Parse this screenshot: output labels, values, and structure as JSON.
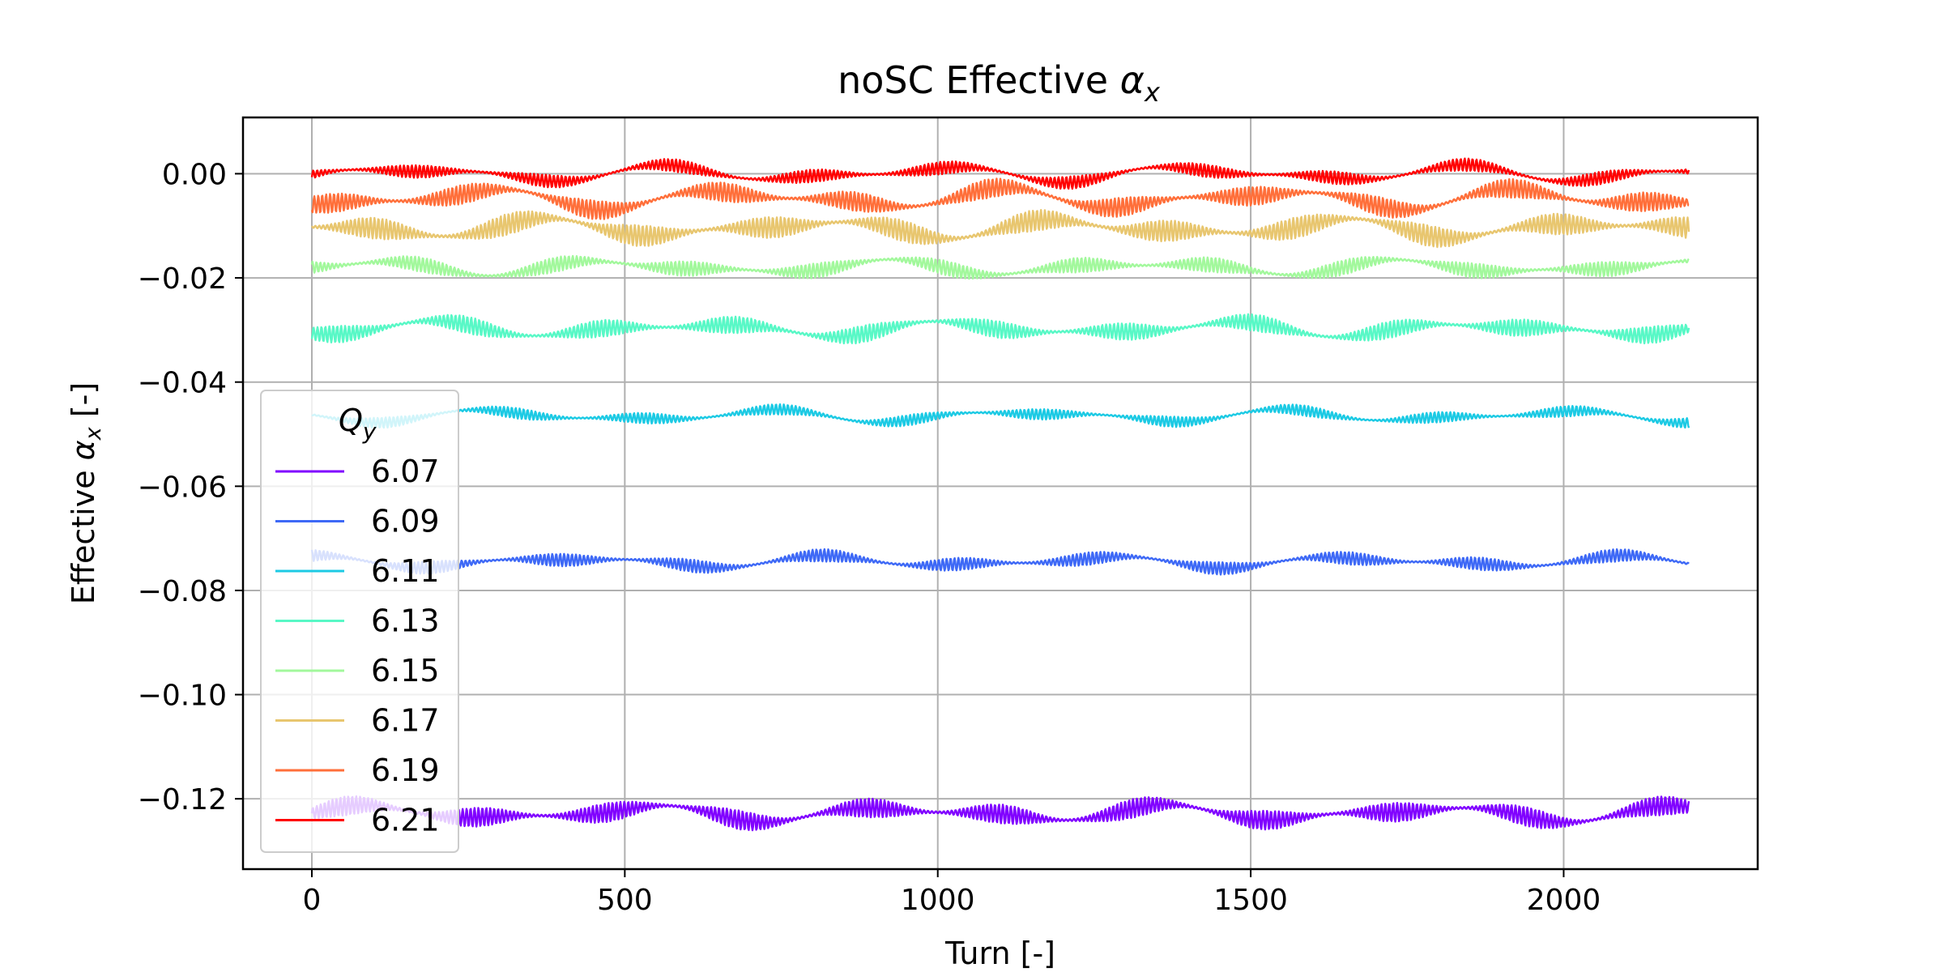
{
  "chart_data": {
    "type": "line",
    "title": "noSC Effective αx",
    "title_base": "noSC Effective ",
    "title_symbol": "α",
    "title_sub": "x",
    "xlabel": "Turn [-]",
    "ylabel_base": "Effective ",
    "ylabel_symbol": "α",
    "ylabel_sub": "x",
    "ylabel_suffix": " [-]",
    "xlim": [
      -110,
      2310
    ],
    "ylim": [
      -0.1335,
      0.0108
    ],
    "xticks": [
      0,
      500,
      1000,
      1500,
      2000
    ],
    "xtick_labels": [
      "0",
      "500",
      "1000",
      "1500",
      "2000"
    ],
    "yticks": [
      0.0,
      -0.02,
      -0.04,
      -0.06,
      -0.08,
      -0.1,
      -0.12
    ],
    "ytick_labels": [
      "0.00",
      "−0.02",
      "−0.04",
      "−0.06",
      "−0.08",
      "−0.10",
      "−0.12"
    ],
    "grid": true,
    "legend": {
      "placement": "lower-left",
      "title_base": "Q",
      "title_sub": "y"
    },
    "turns": 2200,
    "series": [
      {
        "name": "6.07",
        "color": "#8000ff",
        "mean": -0.1228,
        "amp": 0.0018,
        "env": 0.0022
      },
      {
        "name": "6.09",
        "color": "#3e69f6",
        "mean": -0.0745,
        "amp": 0.0012,
        "env": 0.0016
      },
      {
        "name": "6.11",
        "color": "#1ccae4",
        "mean": -0.0465,
        "amp": 0.001,
        "env": 0.0017
      },
      {
        "name": "6.13",
        "color": "#58f8c6",
        "mean": -0.0298,
        "amp": 0.0016,
        "env": 0.002
      },
      {
        "name": "6.15",
        "color": "#a2f89c",
        "mean": -0.018,
        "amp": 0.0014,
        "env": 0.002
      },
      {
        "name": "6.17",
        "color": "#e8c66f",
        "mean": -0.0105,
        "amp": 0.002,
        "env": 0.0025
      },
      {
        "name": "6.19",
        "color": "#ff6f3a",
        "mean": -0.0048,
        "amp": 0.0018,
        "env": 0.0028
      },
      {
        "name": "6.21",
        "color": "#ff0000",
        "mean": 0.0,
        "amp": 0.0012,
        "env": 0.0022
      }
    ]
  }
}
